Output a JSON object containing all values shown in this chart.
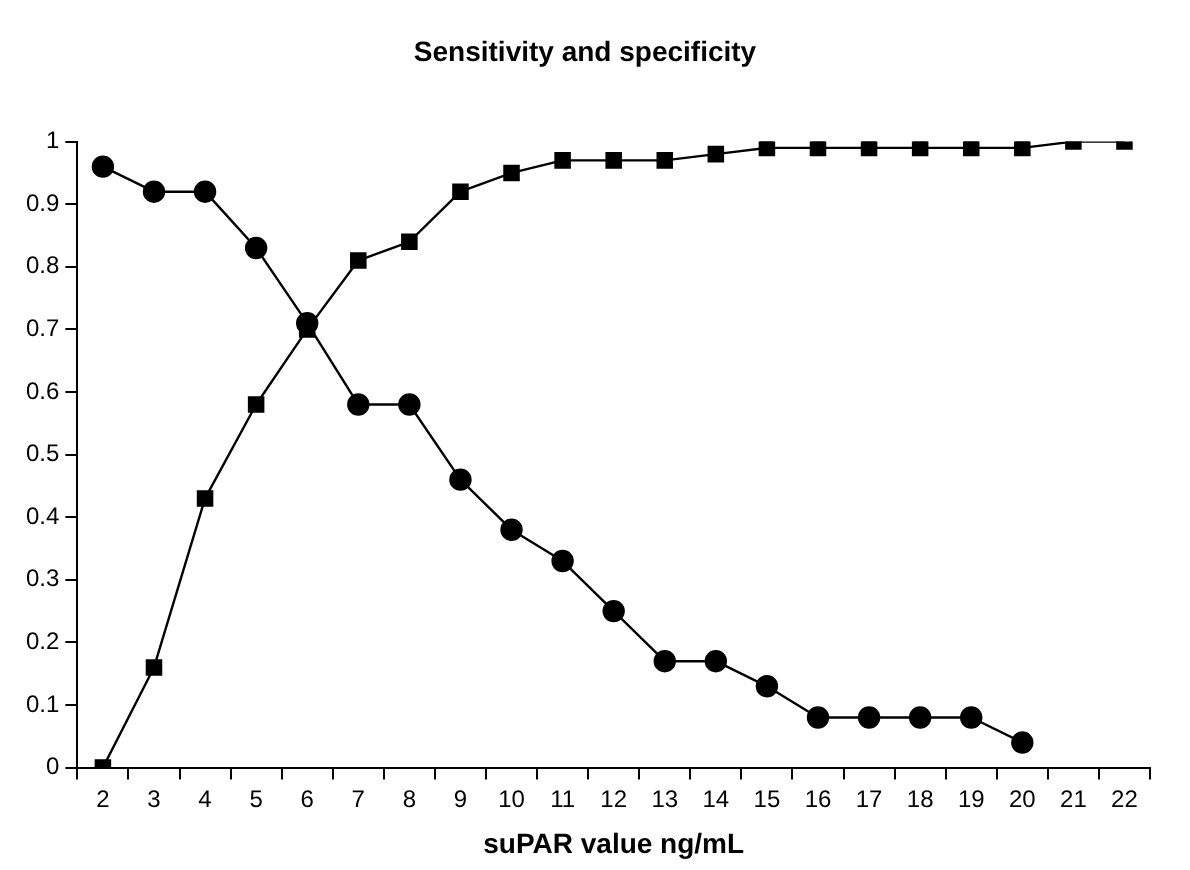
{
  "chart_data": {
    "type": "line",
    "title": "Sensitivity and specificity",
    "xlabel": "suPAR value ng/mL",
    "categories": [
      "2",
      "3",
      "4",
      "5",
      "6",
      "7",
      "8",
      "9",
      "10",
      "11",
      "12",
      "13",
      "14",
      "15",
      "16",
      "17",
      "18",
      "19",
      "20",
      "21",
      "22"
    ],
    "series": [
      {
        "color": "#000000",
        "marker": "circle",
        "values": [
          0.96,
          0.92,
          0.92,
          0.83,
          0.71,
          0.58,
          0.58,
          0.46,
          0.38,
          0.33,
          0.25,
          0.17,
          0.17,
          0.13,
          0.08,
          0.08,
          0.08,
          0.08,
          0.04,
          null,
          null
        ]
      },
      {
        "color": "#000000",
        "marker": "square",
        "values": [
          0,
          0.16,
          0.43,
          0.58,
          0.7,
          0.81,
          0.84,
          0.92,
          0.95,
          0.97,
          0.97,
          0.97,
          0.98,
          0.99,
          0.99,
          0.99,
          0.99,
          0.99,
          0.99,
          1.0,
          1.0
        ]
      }
    ],
    "ylim": [
      0,
      1
    ],
    "yticks": [
      0,
      0.1,
      0.2,
      0.3,
      0.4,
      0.5,
      0.6,
      0.7,
      0.8,
      0.9,
      1
    ],
    "grid": false,
    "legend": false,
    "line_style": "solid"
  }
}
